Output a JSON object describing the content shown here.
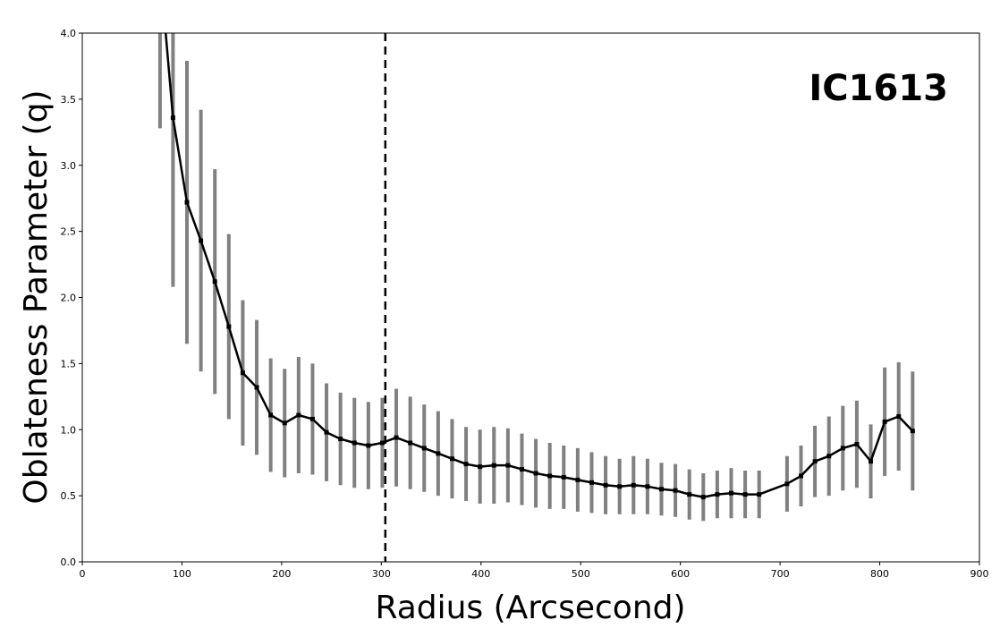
{
  "chart_data": {
    "type": "line",
    "xlabel": "Radius (Arcsecond)",
    "ylabel": "Oblateness Parameter (q)",
    "annotation": "IC1613",
    "xlim": [
      0,
      900
    ],
    "ylim": [
      0,
      4.0
    ],
    "x_ticks": [
      0,
      100,
      200,
      300,
      400,
      500,
      600,
      700,
      800,
      900
    ],
    "x_tick_labels": [
      "0",
      "100",
      "200",
      "300",
      "400",
      "500",
      "600",
      "700",
      "800",
      "900"
    ],
    "y_ticks": [
      0.0,
      0.5,
      1.0,
      1.5,
      2.0,
      2.5,
      3.0,
      3.5,
      4.0
    ],
    "y_tick_labels": [
      "0.0",
      "0.5",
      "1.0",
      "1.5",
      "2.0",
      "2.5",
      "3.0",
      "3.5",
      "4.0"
    ],
    "vertical_line_x": 304,
    "grid": false,
    "colors": {
      "line": "#000000",
      "errorbar": "#808080",
      "vline": "#000000"
    },
    "series": [
      {
        "x": [
          78,
          91,
          105,
          119,
          133,
          147,
          161,
          175,
          189,
          203,
          217,
          231,
          245,
          259,
          273,
          287,
          301,
          315,
          329,
          343,
          357,
          371,
          385,
          399,
          413,
          427,
          441,
          455,
          469,
          483,
          497,
          511,
          525,
          539,
          553,
          567,
          581,
          595,
          609,
          623,
          637,
          651,
          665,
          679,
          707,
          721,
          735,
          749,
          763,
          777,
          791,
          805,
          819,
          833
        ],
        "y": [
          4.5,
          3.36,
          2.72,
          2.43,
          2.12,
          1.78,
          1.43,
          1.32,
          1.11,
          1.05,
          1.11,
          1.08,
          0.98,
          0.93,
          0.9,
          0.88,
          0.9,
          0.94,
          0.9,
          0.86,
          0.82,
          0.78,
          0.74,
          0.72,
          0.73,
          0.73,
          0.7,
          0.67,
          0.65,
          0.64,
          0.62,
          0.6,
          0.58,
          0.57,
          0.58,
          0.57,
          0.55,
          0.54,
          0.51,
          0.49,
          0.51,
          0.52,
          0.51,
          0.51,
          0.59,
          0.65,
          0.76,
          0.8,
          0.86,
          0.89,
          0.76,
          1.06,
          1.1,
          0.99
        ],
        "yerr": [
          1.22,
          1.28,
          1.07,
          0.99,
          0.85,
          0.7,
          0.55,
          0.51,
          0.43,
          0.41,
          0.44,
          0.42,
          0.37,
          0.35,
          0.34,
          0.33,
          0.34,
          0.37,
          0.35,
          0.33,
          0.32,
          0.3,
          0.28,
          0.28,
          0.29,
          0.28,
          0.27,
          0.26,
          0.25,
          0.24,
          0.24,
          0.23,
          0.22,
          0.21,
          0.22,
          0.21,
          0.2,
          0.2,
          0.19,
          0.18,
          0.18,
          0.19,
          0.18,
          0.18,
          0.21,
          0.23,
          0.27,
          0.3,
          0.32,
          0.33,
          0.28,
          0.41,
          0.41,
          0.45
        ]
      }
    ]
  }
}
